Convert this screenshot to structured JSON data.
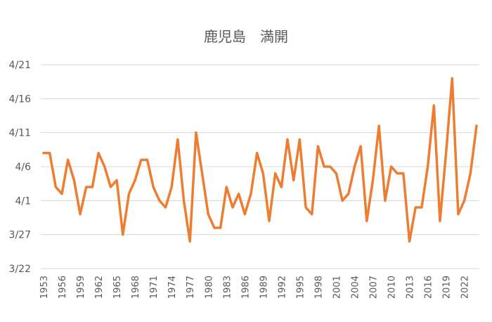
{
  "chart_data": {
    "type": "line",
    "title": "鹿児島　満開",
    "xlabel": "",
    "ylabel": "",
    "x_range": [
      1953,
      2024
    ],
    "y_axis": {
      "unit": "days_from_Mar_22",
      "range": [
        0,
        30
      ],
      "tick_values": [
        0,
        5,
        10,
        15,
        20,
        25,
        30
      ],
      "tick_labels": [
        "3/22",
        "3/27",
        "4/1",
        "4/6",
        "4/11",
        "4/16",
        "4/21"
      ]
    },
    "x_tick_labels": [
      "1953",
      "1956",
      "1959",
      "1962",
      "1965",
      "1968",
      "1971",
      "1974",
      "1977",
      "1980",
      "1983",
      "1986",
      "1989",
      "1992",
      "1995",
      "1998",
      "2001",
      "2004",
      "2007",
      "2010",
      "2013",
      "2016",
      "2019",
      "2022"
    ],
    "grid": true,
    "legend": "none",
    "series": [
      {
        "name": "",
        "color": "#ED7D31",
        "x": [
          1953,
          1954,
          1955,
          1956,
          1957,
          1958,
          1959,
          1960,
          1961,
          1962,
          1963,
          1964,
          1965,
          1966,
          1967,
          1968,
          1969,
          1970,
          1971,
          1972,
          1973,
          1974,
          1975,
          1976,
          1977,
          1978,
          1979,
          1980,
          1981,
          1982,
          1983,
          1984,
          1985,
          1986,
          1987,
          1988,
          1989,
          1990,
          1991,
          1992,
          1993,
          1994,
          1995,
          1996,
          1997,
          1998,
          1999,
          2000,
          2001,
          2002,
          2003,
          2004,
          2005,
          2006,
          2007,
          2008,
          2009,
          2010,
          2011,
          2012,
          2013,
          2014,
          2015,
          2016,
          2017,
          2018,
          2019,
          2020,
          2021,
          2022,
          2023,
          2024
        ],
        "values": [
          17,
          17,
          12,
          11,
          16,
          13,
          8,
          12,
          12,
          17,
          15,
          12,
          13,
          5,
          11,
          13,
          16,
          16,
          12,
          10,
          9,
          12,
          19,
          10,
          4,
          20,
          14,
          8,
          6,
          6,
          12,
          9,
          11,
          8,
          11,
          17,
          14,
          7,
          14,
          12,
          19,
          13,
          19,
          9,
          8,
          18,
          15,
          15,
          14,
          10,
          11,
          15,
          18,
          7,
          13,
          21,
          10,
          15,
          14,
          14,
          4,
          9,
          9,
          15,
          24,
          7,
          17,
          28,
          8,
          10,
          14,
          21
        ]
      }
    ]
  }
}
